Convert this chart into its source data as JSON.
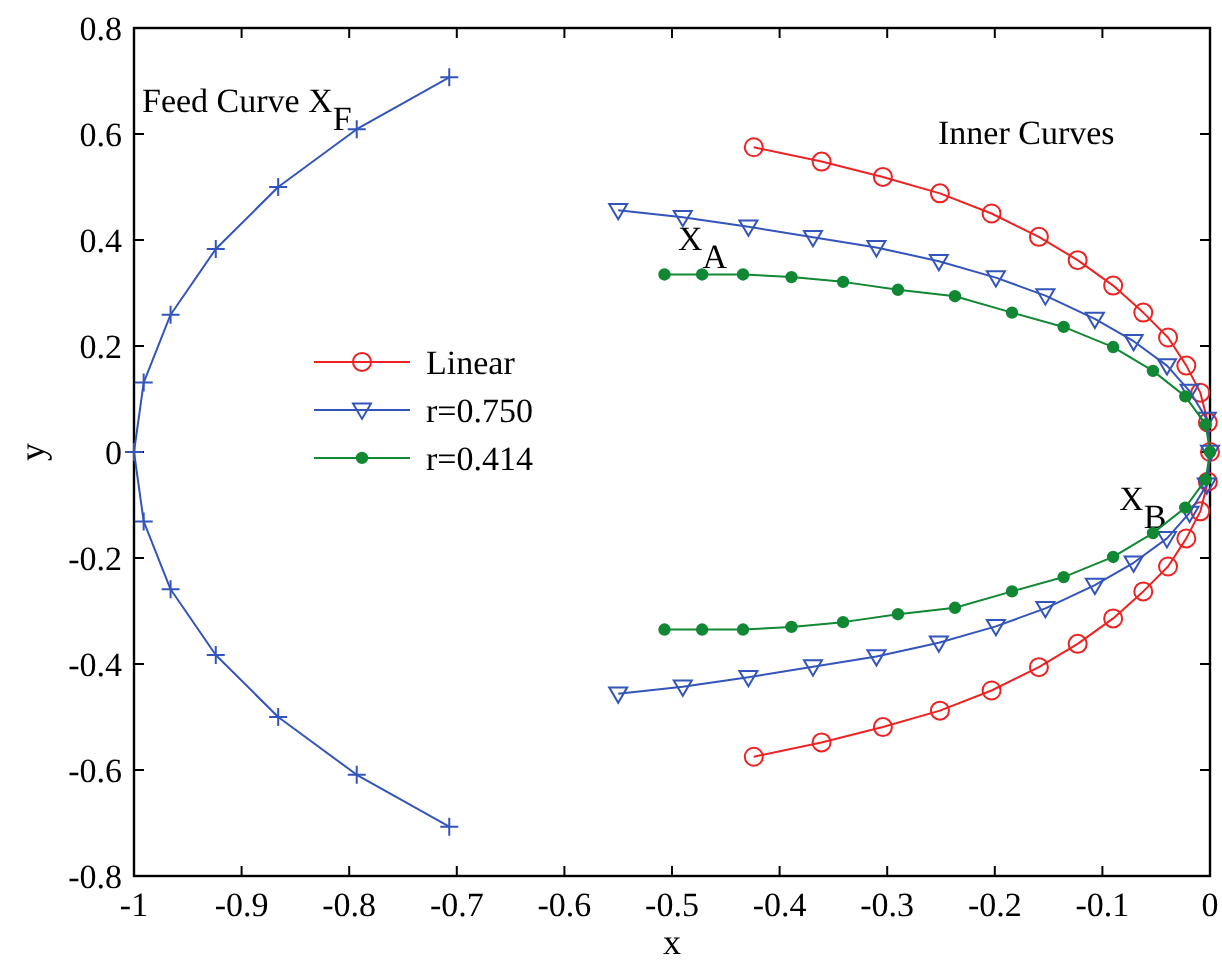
{
  "chart_data": {
    "type": "line",
    "xlabel": "x",
    "ylabel": "y",
    "xlim": [
      -1,
      0
    ],
    "ylim": [
      -0.8,
      0.8
    ],
    "xticks": [
      -1,
      -0.9,
      -0.8,
      -0.7,
      -0.6,
      -0.5,
      -0.4,
      -0.3,
      -0.2,
      -0.1,
      0
    ],
    "yticks": [
      -0.8,
      -0.6,
      -0.4,
      -0.2,
      0,
      0.2,
      0.4,
      0.6,
      0.8
    ],
    "grid": false,
    "legend": "left",
    "series": [
      {
        "color": "#3355bb",
        "marker": "cross",
        "x": [
          -0.707,
          -0.793,
          -0.866,
          -0.924,
          -0.966,
          -0.991,
          -1,
          -0.991,
          -0.966,
          -0.924,
          -0.866,
          -0.793,
          -0.707
        ],
        "values": [
          0.707,
          0.609,
          0.5,
          0.383,
          0.259,
          0.131,
          0,
          -0.131,
          -0.259,
          -0.383,
          -0.5,
          -0.609,
          -0.707
        ]
      },
      {
        "name": "Linear",
        "color": "#ee2222",
        "marker": "circle",
        "x": [
          -0.424,
          -0.361,
          -0.304,
          -0.251,
          -0.203,
          -0.159,
          -0.123,
          -0.09,
          -0.062,
          -0.039,
          -0.022,
          -0.009,
          -0.002,
          0,
          -0.002,
          -0.009,
          -0.022,
          -0.039,
          -0.062,
          -0.09,
          -0.123,
          -0.159,
          -0.203,
          -0.251,
          -0.304,
          -0.361,
          -0.424
        ],
        "values": [
          0.575,
          0.548,
          0.519,
          0.488,
          0.45,
          0.406,
          0.362,
          0.314,
          0.263,
          0.216,
          0.163,
          0.112,
          0.056,
          0,
          -0.056,
          -0.112,
          -0.163,
          -0.216,
          -0.263,
          -0.314,
          -0.362,
          -0.406,
          -0.45,
          -0.488,
          -0.519,
          -0.548,
          -0.575
        ]
      },
      {
        "name": "r=0.750",
        "color": "#3355bb",
        "marker": "triangle",
        "x": [
          -0.55,
          -0.49,
          -0.429,
          -0.369,
          -0.31,
          -0.252,
          -0.199,
          -0.153,
          -0.107,
          -0.071,
          -0.04,
          -0.019,
          -0.003,
          0,
          -0.003,
          -0.019,
          -0.04,
          -0.071,
          -0.107,
          -0.153,
          -0.199,
          -0.252,
          -0.31,
          -0.369,
          -0.429,
          -0.49,
          -0.55
        ],
        "values": [
          0.456,
          0.443,
          0.425,
          0.405,
          0.386,
          0.36,
          0.329,
          0.295,
          0.251,
          0.209,
          0.163,
          0.115,
          0.062,
          0,
          -0.062,
          -0.115,
          -0.163,
          -0.209,
          -0.251,
          -0.295,
          -0.329,
          -0.36,
          -0.386,
          -0.405,
          -0.425,
          -0.443,
          -0.456
        ]
      },
      {
        "name": "r=0.414",
        "color": "#118833",
        "marker": "circle_filled",
        "x": [
          -0.507,
          -0.472,
          -0.434,
          -0.389,
          -0.341,
          -0.29,
          -0.237,
          -0.184,
          -0.136,
          -0.09,
          -0.053,
          -0.023,
          -0.004,
          0,
          -0.004,
          -0.023,
          -0.053,
          -0.09,
          -0.136,
          -0.184,
          -0.237,
          -0.29,
          -0.341,
          -0.389,
          -0.434,
          -0.472,
          -0.507
        ],
        "values": [
          0.335,
          0.335,
          0.335,
          0.33,
          0.321,
          0.306,
          0.294,
          0.263,
          0.236,
          0.198,
          0.153,
          0.105,
          0.052,
          0,
          -0.052,
          -0.105,
          -0.153,
          -0.198,
          -0.236,
          -0.263,
          -0.294,
          -0.306,
          -0.321,
          -0.33,
          -0.335,
          -0.335,
          -0.335
        ]
      }
    ],
    "annotations": [
      "Feed Curve X$_{F}$",
      "Inner Curves",
      {
        "text": "X$_{A}$",
        "x": -0.5,
        "y": 0.32
      },
      {
        "text": "X$_{B}$",
        "x": -0.09,
        "y": -0.17
      }
    ]
  }
}
